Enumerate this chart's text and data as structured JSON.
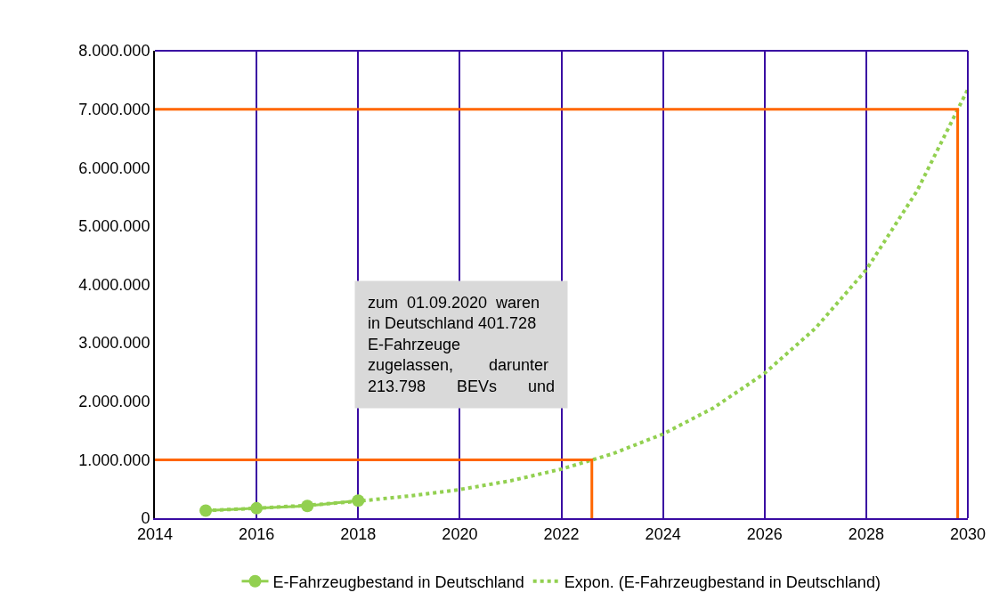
{
  "chart_data": {
    "type": "line",
    "x": [
      2015,
      2016,
      2017,
      2018
    ],
    "series": [
      {
        "name": "E-Fahrzeugbestand in Deutschland",
        "color": "#92d050",
        "values": [
          130000,
          170000,
          210000,
          300000
        ],
        "marker": "circle",
        "line_style": "solid"
      },
      {
        "name": "Expon. (E-Fahrzeugbestand in Deutschland)",
        "color": "#92d050",
        "x": [
          2015,
          2016,
          2017,
          2018,
          2019,
          2020,
          2021,
          2022,
          2023,
          2024,
          2025,
          2026,
          2027,
          2028,
          2029,
          2030
        ],
        "values": [
          130000,
          170000,
          220000,
          290000,
          380000,
          490000,
          640000,
          840000,
          1100000,
          1440000,
          1890000,
          2480000,
          3250000,
          4250000,
          5600000,
          7340000
        ],
        "marker": "none",
        "line_style": "dotted"
      },
      {
        "color": "#ff6600",
        "x": [
          2014,
          2022.6,
          2022.6
        ],
        "values": [
          1000000,
          1000000,
          0
        ],
        "marker": "none",
        "line_style": "solid"
      },
      {
        "color": "#ff6600",
        "x": [
          2014,
          2029.8,
          2029.8
        ],
        "values": [
          7000000,
          7000000,
          0
        ],
        "marker": "none",
        "line_style": "solid"
      }
    ],
    "xlim": [
      2014,
      2030
    ],
    "xticks": [
      2014,
      2016,
      2018,
      2020,
      2022,
      2024,
      2026,
      2028,
      2030
    ],
    "ylim": [
      0,
      8000000
    ],
    "yticks": [
      {
        "value": 0,
        "label": "0"
      },
      {
        "value": 1000000,
        "label": "1.000.000"
      },
      {
        "value": 2000000,
        "label": "2.000.000"
      },
      {
        "value": 3000000,
        "label": "3.000.000"
      },
      {
        "value": 4000000,
        "label": "4.000.000"
      },
      {
        "value": 5000000,
        "label": "5.000.000"
      },
      {
        "value": 6000000,
        "label": "6.000.000"
      },
      {
        "value": 7000000,
        "label": "7.000.000"
      },
      {
        "value": 8000000,
        "label": "8.000.000"
      }
    ],
    "grid": "x",
    "legend": "bottom",
    "annotations": [
      "zum  01.09.2020  waren\nin Deutschland 401.728\nE-Fahrzeuge\nzugelassen,        darunter\n213.798       BEVs       und"
    ]
  }
}
